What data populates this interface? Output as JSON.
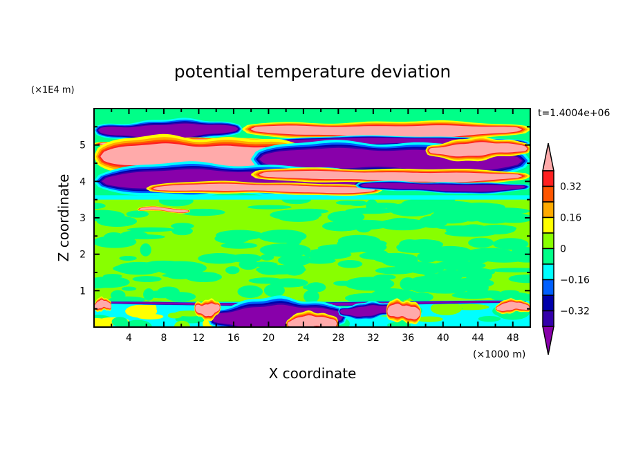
{
  "chart_data": {
    "type": "heatmap",
    "title": "potential temperature deviation",
    "xlabel": "X coordinate",
    "ylabel": "Z coordinate",
    "x_unit": "(×1000 m)",
    "y_unit": "(×1E4 m)",
    "time_label": "t=1.4004e+06",
    "xlim": [
      0,
      50
    ],
    "ylim": [
      0,
      6
    ],
    "x_ticks": [
      4,
      8,
      12,
      16,
      20,
      24,
      28,
      32,
      36,
      40,
      44,
      48
    ],
    "x_tick_labels": [
      "4",
      "8",
      "12",
      "16",
      "20",
      "24",
      "28",
      "32",
      "36",
      "40",
      "44",
      "48"
    ],
    "y_ticks": [
      1,
      2,
      3,
      4,
      5
    ],
    "y_tick_labels": [
      "1",
      "2",
      "3",
      "4",
      "5"
    ],
    "colorbar": {
      "levels": [
        0.4,
        0.32,
        0.24,
        0.16,
        0.08,
        0,
        -0.08,
        -0.16,
        -0.24,
        -0.32,
        -0.4
      ],
      "labels": [
        {
          "value": 0.32,
          "text": "0.32"
        },
        {
          "value": 0.16,
          "text": "0.16"
        },
        {
          "value": 0,
          "text": "0"
        },
        {
          "value": -0.16,
          "text": "−0.16"
        },
        {
          "value": -0.32,
          "text": "−0.32"
        }
      ],
      "over_color": "#ffaaaa",
      "under_color": "#8800aa",
      "colors": [
        "#ff2020",
        "#ff5500",
        "#ffaa00",
        "#ffff00",
        "#88ff00",
        "#00ff88",
        "#00ffff",
        "#0060ff",
        "#0000aa",
        "#3300aa"
      ]
    },
    "features": [
      {
        "sign": -1,
        "x": [
          0,
          17
        ],
        "z": 5.4,
        "half": 0.17
      },
      {
        "sign": 1,
        "x": [
          0,
          22
        ],
        "z": 5.07,
        "half": 0.05
      },
      {
        "sign": 1,
        "x": [
          17,
          50
        ],
        "z": 5.4,
        "half": 0.15
      },
      {
        "sign": -1,
        "x": [
          17,
          50
        ],
        "z": 5.08,
        "half": 0.07
      },
      {
        "sign": 1,
        "x": [
          0,
          25
        ],
        "z": 4.68,
        "half": 0.32
      },
      {
        "sign": -1,
        "x": [
          18,
          50
        ],
        "z": 4.6,
        "half": 0.28
      },
      {
        "sign": 1,
        "x": [
          38,
          50
        ],
        "z": 4.88,
        "half": 0.16
      },
      {
        "sign": -1,
        "x": [
          0,
          31
        ],
        "z": 4.02,
        "half": 0.26
      },
      {
        "sign": 1,
        "x": [
          18,
          50
        ],
        "z": 4.15,
        "half": 0.12
      },
      {
        "sign": 1,
        "x": [
          6,
          33
        ],
        "z": 3.8,
        "half": 0.09
      },
      {
        "sign": -1,
        "x": [
          30,
          50
        ],
        "z": 3.85,
        "half": 0.08
      },
      {
        "sign": 1,
        "x": [
          5,
          11
        ],
        "z": 3.22,
        "half": 0.03
      },
      {
        "sign": -1,
        "x": [
          0,
          50
        ],
        "z": 0.66,
        "half": 0.025
      },
      {
        "sign": -1,
        "x": [
          13,
          29
        ],
        "z": 0.28,
        "half": 0.28
      },
      {
        "sign": -1,
        "x": [
          28,
          35
        ],
        "z": 0.45,
        "half": 0.12
      },
      {
        "sign": 1,
        "x": [
          11.5,
          14.5
        ],
        "z": 0.5,
        "half": 0.15
      },
      {
        "sign": 1,
        "x": [
          22,
          28
        ],
        "z": 0.12,
        "half": 0.15
      },
      {
        "sign": 1,
        "x": [
          33.5,
          37.5
        ],
        "z": 0.42,
        "half": 0.18
      },
      {
        "sign": 1,
        "x": [
          46,
          50
        ],
        "z": 0.55,
        "half": 0.1
      },
      {
        "sign": 1,
        "x": [
          0,
          2
        ],
        "z": 0.6,
        "half": 0.1
      }
    ]
  }
}
